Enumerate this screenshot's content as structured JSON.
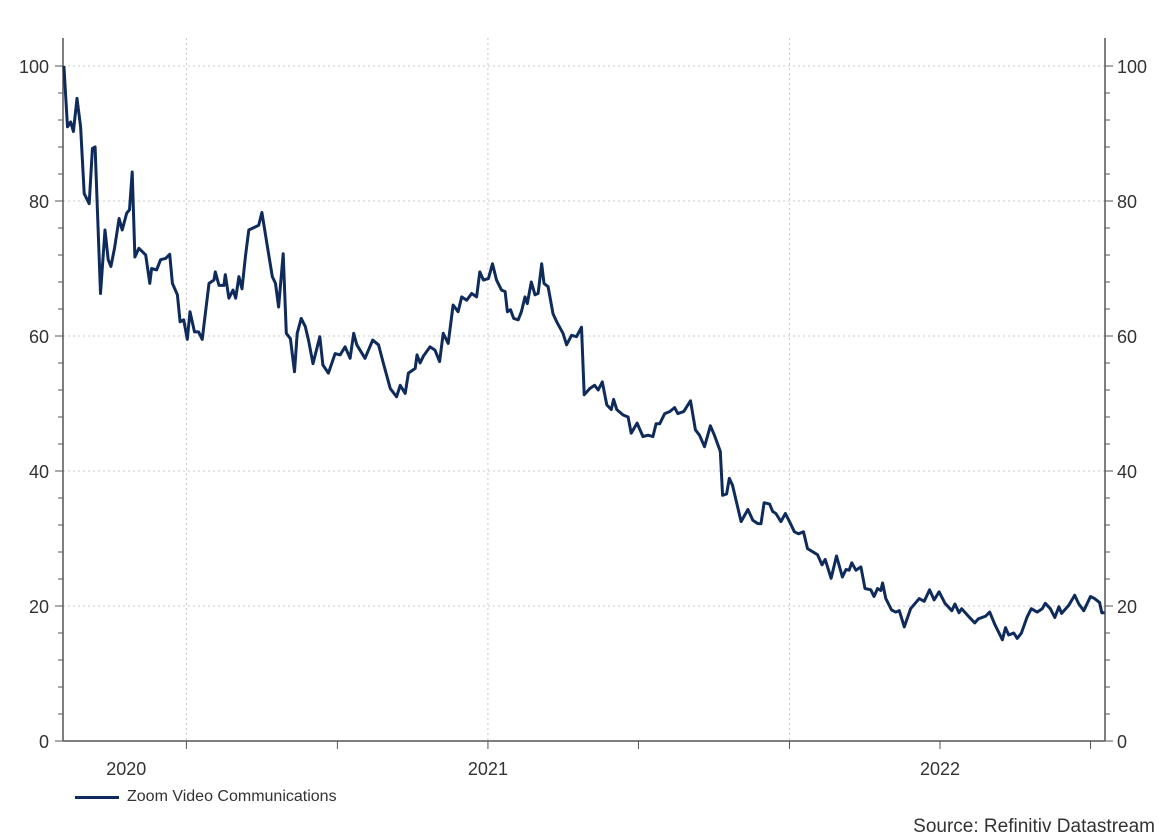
{
  "chart_data": {
    "type": "line",
    "title": "",
    "xlabel": "",
    "ylabel": "",
    "xlim": [
      2020.06,
      2022.365
    ],
    "ylim": [
      0,
      100
    ],
    "grid": true,
    "legend_placement": "bottom-left",
    "y_ticks": [
      0,
      20,
      40,
      60,
      80,
      100
    ],
    "y_tick_labels": [
      "0",
      "20",
      "40",
      "60",
      "80",
      "100"
    ],
    "y_minor_step": 4,
    "y_axes": "left and right",
    "x_ticks": [
      2020.333,
      2020.667,
      2021.0,
      2021.333,
      2021.667,
      2022.0,
      2022.333
    ],
    "x_gridlines": [
      2020.333,
      2021.0,
      2021.667
    ],
    "x_tick_labels": [
      {
        "label": "2020",
        "x": 2020.2
      },
      {
        "label": "2021",
        "x": 2021.0
      },
      {
        "label": "2022",
        "x": 2022.0
      }
    ],
    "series": [
      {
        "name": "Zoom Video Communications",
        "color": "#0e2b5c",
        "x": [
          2020.062,
          2020.07,
          2020.077,
          2020.083,
          2020.091,
          2020.099,
          2020.107,
          2020.118,
          2020.125,
          2020.131,
          2020.136,
          2020.143,
          2020.153,
          2020.16,
          2020.166,
          2020.174,
          2020.184,
          2020.191,
          2020.201,
          2020.207,
          2020.213,
          2020.219,
          2020.228,
          2020.243,
          2020.252,
          2020.256,
          2020.267,
          2020.276,
          2020.287,
          2020.296,
          2020.302,
          2020.313,
          2020.319,
          2020.327,
          2020.335,
          2020.341,
          2020.351,
          2020.36,
          2020.368,
          2020.375,
          2020.383,
          2020.394,
          2020.397,
          2020.405,
          2020.416,
          2020.419,
          2020.427,
          2020.436,
          2020.442,
          2020.449,
          2020.456,
          2020.464,
          2020.471,
          2020.493,
          2020.5,
          2020.511,
          2020.523,
          2020.53,
          2020.537,
          2020.547,
          2020.554,
          2020.563,
          2020.572,
          2020.578,
          2020.587,
          2020.596,
          2020.603,
          2020.613,
          2020.628,
          2020.635,
          2020.647,
          2020.662,
          2020.673,
          2020.684,
          2020.695,
          2020.703,
          2020.71,
          2020.728,
          2020.745,
          2020.758,
          2020.769,
          2020.784,
          2020.798,
          2020.806,
          2020.817,
          2020.824,
          2020.839,
          2020.843,
          2020.85,
          2020.857,
          2020.872,
          2020.883,
          2020.893,
          2020.901,
          2020.912,
          2020.923,
          2020.934,
          2020.942,
          2020.953,
          2020.964,
          2020.975,
          2020.982,
          2020.99,
          2021.001,
          2021.01,
          2021.019,
          2021.03,
          2021.038,
          2021.043,
          2021.05,
          2021.057,
          2021.067,
          2021.074,
          2021.082,
          2021.087,
          2021.096,
          2021.104,
          2021.111,
          2021.119,
          2021.124,
          2021.133,
          2021.144,
          2021.152,
          2021.166,
          2021.174,
          2021.185,
          2021.196,
          2021.207,
          2021.213,
          2021.225,
          2021.236,
          2021.244,
          2021.253,
          2021.263,
          2021.273,
          2021.278,
          2021.285,
          2021.299,
          2021.31,
          2021.317,
          2021.33,
          2021.343,
          2021.354,
          2021.365,
          2021.372,
          2021.38,
          2021.391,
          2021.402,
          2021.413,
          2021.42,
          2021.433,
          2021.448,
          2021.459,
          2021.468,
          2021.479,
          2021.492,
          2021.501,
          2021.514,
          2021.519,
          2021.528,
          2021.534,
          2021.541,
          2021.56,
          2021.575,
          2021.586,
          2021.597,
          2021.604,
          2021.611,
          2021.623,
          2021.63,
          2021.637,
          2021.648,
          2021.658,
          2021.667,
          2021.678,
          2021.687,
          2021.698,
          2021.707,
          2021.729,
          2021.739,
          2021.746,
          2021.759,
          2021.771,
          2021.784,
          2021.792,
          2021.799,
          2021.805,
          2021.814,
          2021.825,
          2021.834,
          2021.847,
          2021.854,
          2021.862,
          2021.869,
          2021.873,
          2021.88,
          2021.893,
          2021.902,
          2021.91,
          2021.921,
          2021.935,
          2021.954,
          2021.965,
          2021.977,
          2021.987,
          2021.998,
          2022.011,
          2022.026,
          2022.033,
          2022.042,
          2022.048,
          2022.064,
          2022.077,
          2022.085,
          2022.101,
          2022.11,
          2022.121,
          2022.138,
          2022.145,
          2022.152,
          2022.163,
          2022.171,
          2022.18,
          2022.193,
          2022.202,
          2022.215,
          2022.226,
          2022.233,
          2022.244,
          2022.254,
          2022.263,
          2022.269,
          2022.285,
          2022.298,
          2022.307,
          2022.318,
          2022.333,
          2022.342,
          2022.353,
          2022.358,
          2022.364
        ],
        "y": [
          100,
          91,
          91.7,
          90.3,
          95.2,
          91,
          81.1,
          79.6,
          87.8,
          88,
          78.7,
          66.3,
          75.7,
          71.3,
          70.3,
          73,
          77.4,
          75.7,
          78.2,
          78.7,
          84.3,
          71.7,
          73,
          72,
          67.8,
          70,
          69.8,
          71.3,
          71.5,
          72.1,
          67.8,
          66.1,
          62.1,
          62.4,
          59.5,
          63.6,
          60.6,
          60.6,
          59.5,
          63.4,
          67.8,
          68.3,
          69.5,
          67.5,
          67.5,
          69.1,
          65.6,
          66.8,
          65.6,
          68.8,
          67,
          72,
          75.7,
          76.4,
          78.3,
          73.7,
          68.8,
          67.8,
          64.3,
          72.2,
          60.4,
          59.6,
          54.7,
          60.4,
          62.6,
          61.4,
          59.4,
          55.9,
          59.9,
          55.7,
          54.5,
          57.4,
          57.2,
          58.4,
          56.7,
          60.4,
          58.7,
          56.7,
          59.4,
          58.7,
          55.9,
          52.2,
          51,
          52.7,
          51.5,
          54.5,
          55.2,
          57.2,
          56,
          57,
          58.4,
          57.9,
          56.2,
          60.4,
          58.9,
          64.6,
          63.6,
          65.8,
          65.3,
          66.3,
          65.8,
          69.5,
          68.3,
          68.5,
          70.7,
          68.3,
          66.8,
          66.6,
          63.6,
          63.9,
          62.6,
          62.4,
          63.6,
          65.8,
          64.8,
          68,
          66.1,
          66.3,
          70.7,
          67.8,
          67.3,
          63.3,
          62.1,
          60.4,
          58.7,
          60.1,
          59.9,
          61.3,
          51.3,
          52.2,
          52.7,
          52,
          53.2,
          49.8,
          49.1,
          50.6,
          49.1,
          48.3,
          48,
          45.6,
          47.1,
          45.1,
          45.3,
          45.1,
          47,
          47,
          48.5,
          48.8,
          49.4,
          48.5,
          48.8,
          50.4,
          46.1,
          45.3,
          43.6,
          46.7,
          45.3,
          42.9,
          36.4,
          36.6,
          38.9,
          37.9,
          32.5,
          34.3,
          32.7,
          32.2,
          32.2,
          35.3,
          35.1,
          34,
          33.7,
          32.5,
          33.7,
          32.5,
          31,
          30.7,
          31,
          28.5,
          27.6,
          26.1,
          26.9,
          24.1,
          27.4,
          24.3,
          25.4,
          25.3,
          26.4,
          25.3,
          25.8,
          22.6,
          22.4,
          21.4,
          22.6,
          22.3,
          23.4,
          21.1,
          19.4,
          19.1,
          19.3,
          16.9,
          19.6,
          21.1,
          20.7,
          22.4,
          20.9,
          22.1,
          20.4,
          19.3,
          20.3,
          19,
          19.6,
          18.4,
          17.5,
          18.1,
          18.5,
          19.1,
          17.3,
          15,
          16.8,
          15.7,
          16,
          15.2,
          16,
          18.4,
          19.6,
          19.1,
          19.6,
          20.4,
          19.6,
          18.3,
          19.9,
          18.9,
          20.1,
          21.6,
          20.3,
          19.3,
          21.4,
          21.1,
          20.5,
          19,
          19
        ]
      }
    ]
  },
  "legend": {
    "label": "Zoom Video Communications"
  },
  "source": "Source: Refinitiv Datastream"
}
